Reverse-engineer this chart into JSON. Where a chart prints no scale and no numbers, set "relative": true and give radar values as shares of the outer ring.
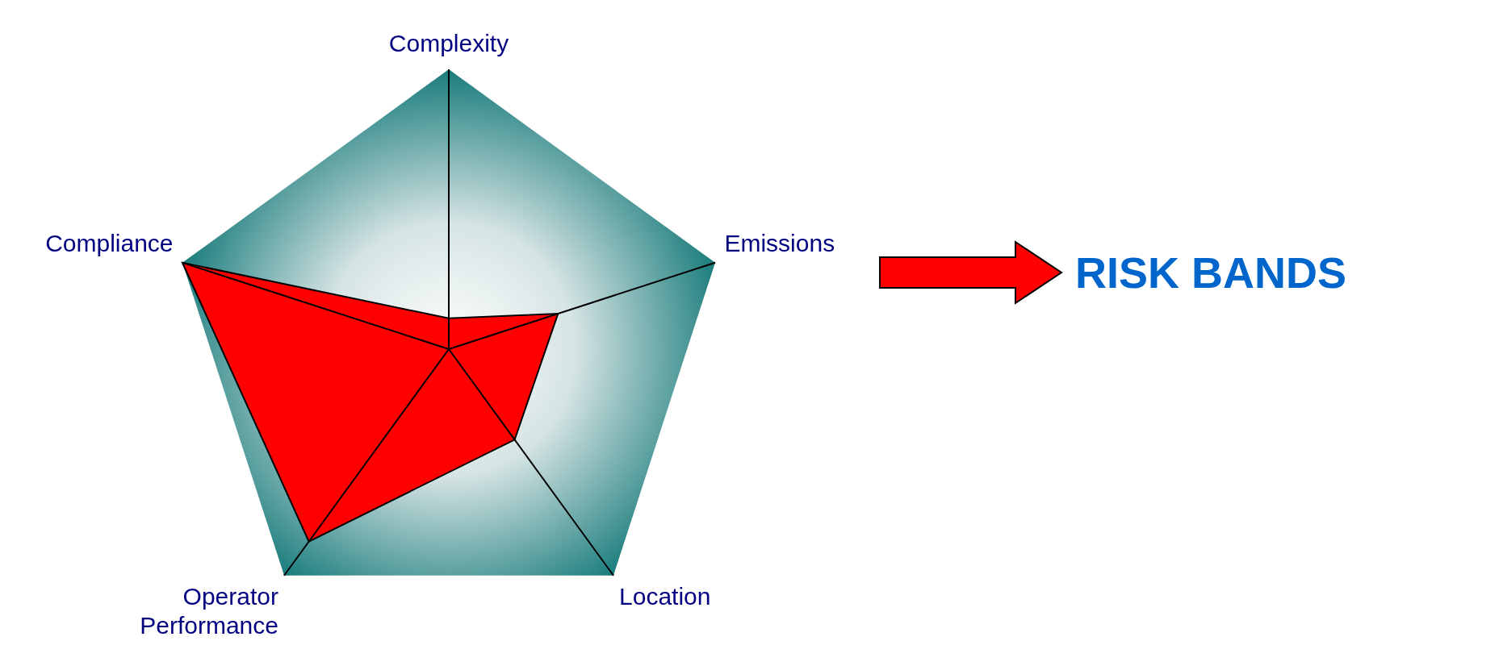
{
  "chart_data": {
    "type": "radar",
    "relative": true,
    "marker": "none",
    "categories": [
      "Complexity",
      "Emissions",
      "Location",
      "Operator Performance",
      "Compliance"
    ],
    "series": [
      {
        "color": "#ff0000",
        "values": [
          0.11,
          0.41,
          0.4,
          0.85,
          1
        ]
      }
    ],
    "annotations": [
      "RISK BANDS"
    ]
  }
}
